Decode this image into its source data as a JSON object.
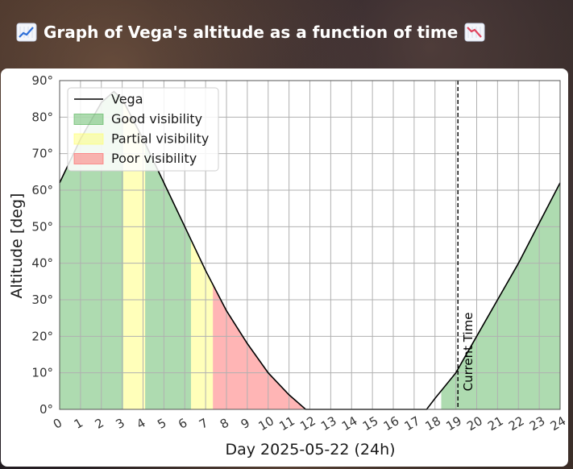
{
  "header": {
    "title": "Graph of Vega's altitude as a function of time",
    "icon_left": "chart-increasing-icon",
    "icon_right": "chart-decreasing-icon"
  },
  "chart_data": {
    "type": "area",
    "xlabel": "Day 2025-05-22 (24h)",
    "ylabel": "Altitude [deg]",
    "xlim": [
      0,
      24
    ],
    "ylim": [
      0,
      90
    ],
    "x_ticks": [
      "0",
      "1",
      "2",
      "3",
      "4",
      "5",
      "6",
      "7",
      "8",
      "9",
      "10",
      "11",
      "12",
      "13",
      "14",
      "15",
      "16",
      "17",
      "18",
      "19",
      "20",
      "21",
      "22",
      "23",
      "24"
    ],
    "y_ticks": [
      "0°",
      "10°",
      "20°",
      "30°",
      "40°",
      "50°",
      "60°",
      "70°",
      "80°",
      "90°"
    ],
    "grid": true,
    "legend_position": "top-left",
    "series": [
      {
        "name": "Vega",
        "color": "#000000",
        "x": [
          0,
          1,
          2,
          2.6,
          3,
          4,
          5,
          6,
          7,
          8,
          9,
          10,
          11,
          11.8,
          17.6,
          18,
          19,
          20,
          21,
          22,
          23,
          24
        ],
        "y": [
          62,
          74,
          84,
          87,
          85,
          74,
          62,
          50,
          38,
          27,
          18,
          10,
          4,
          0,
          0,
          3,
          10,
          20,
          30,
          40,
          51,
          62
        ]
      }
    ],
    "bands": [
      {
        "label": "Good visibility",
        "color": "#4caf50",
        "ranges": [
          [
            0,
            3.05
          ],
          [
            4.1,
            6.3
          ],
          [
            18.3,
            24
          ]
        ]
      },
      {
        "label": "Partial visibility",
        "color": "#ffff66",
        "ranges": [
          [
            3.05,
            4.1
          ],
          [
            6.3,
            7.35
          ]
        ]
      },
      {
        "label": "Poor visibility",
        "color": "#ff5a5a",
        "ranges": [
          [
            7.35,
            11.8
          ]
        ]
      }
    ],
    "vline": {
      "x": 19.1,
      "label": "Current Time"
    }
  }
}
